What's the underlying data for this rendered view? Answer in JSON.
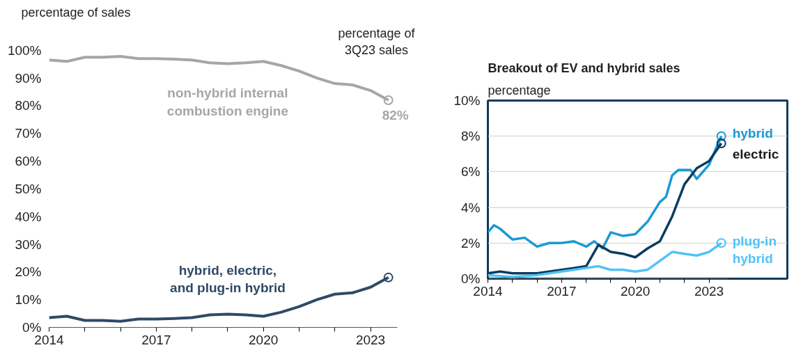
{
  "chart_data": [
    {
      "type": "line",
      "ylabel": "percentage of sales",
      "xlim": [
        2014,
        2023.75
      ],
      "ylim": [
        0,
        100
      ],
      "xticks": [
        2014,
        {
          "value": 2015,
          "label": null
        },
        {
          "value": 2016,
          "label": null
        },
        2017,
        {
          "value": 2018,
          "label": null
        },
        {
          "value": 2019,
          "label": null
        },
        2020,
        {
          "value": 2021,
          "label": null
        },
        {
          "value": 2022,
          "label": null
        },
        2023
      ],
      "yticks": [
        {
          "value": 0,
          "label": "0%"
        },
        {
          "value": 10,
          "label": "10%"
        },
        {
          "value": 20,
          "label": "20%"
        },
        {
          "value": 30,
          "label": "30%"
        },
        {
          "value": 40,
          "label": "40%"
        },
        {
          "value": 50,
          "label": "50%"
        },
        {
          "value": 60,
          "label": "60%"
        },
        {
          "value": 70,
          "label": "70%"
        },
        {
          "value": 80,
          "label": "80%"
        },
        {
          "value": 90,
          "label": "90%"
        },
        {
          "value": 100,
          "label": "100%"
        }
      ],
      "grid": false,
      "x": [
        2014,
        2014.5,
        2015,
        2015.5,
        2016,
        2016.5,
        2017,
        2017.5,
        2018,
        2018.5,
        2019,
        2019.5,
        2020,
        2020.5,
        2021,
        2021.5,
        2022,
        2022.5,
        2023,
        2023.5
      ],
      "series": [
        {
          "name": "non-hybrid internal\ncombustion engine",
          "color": "#a6a6a6",
          "values": [
            96.5,
            96,
            97.5,
            97.5,
            97.8,
            97,
            97,
            96.8,
            96.5,
            95.5,
            95.2,
            95.5,
            96,
            94.5,
            92.5,
            90,
            88,
            87.5,
            85.5,
            82
          ]
        },
        {
          "name": "hybrid, electric,\nand plug-in hybrid",
          "color": "#2e4a66",
          "values": [
            3.5,
            4,
            2.5,
            2.5,
            2.2,
            3,
            3,
            3.2,
            3.5,
            4.5,
            4.8,
            4.5,
            4,
            5.5,
            7.5,
            10,
            12,
            12.5,
            14.5,
            18
          ]
        }
      ],
      "annotations": [
        "percentage of\n3Q23 sales",
        {
          "text": "82%",
          "x": 2023.5,
          "y": 82
        }
      ]
    },
    {
      "type": "line",
      "title": "Breakout of EV and hybrid sales",
      "ylabel": "percentage",
      "xlim": [
        2014,
        2023.75
      ],
      "ylim": [
        0,
        10
      ],
      "xticks": [
        2014,
        {
          "value": 2015,
          "label": null
        },
        {
          "value": 2016,
          "label": null
        },
        2017,
        {
          "value": 2018,
          "label": null
        },
        {
          "value": 2019,
          "label": null
        },
        2020,
        {
          "value": 2021,
          "label": null
        },
        {
          "value": 2022,
          "label": null
        },
        2023
      ],
      "yticks": [
        {
          "value": 0,
          "label": "0%"
        },
        {
          "value": 2,
          "label": "2%"
        },
        {
          "value": 4,
          "label": "4%"
        },
        {
          "value": 6,
          "label": "6%"
        },
        {
          "value": 8,
          "label": "8%"
        },
        {
          "value": 10,
          "label": "10%"
        }
      ],
      "grid": "y",
      "series": [
        {
          "name": "hybrid",
          "color": "#1a9ad6",
          "x": [
            2014,
            2014.25,
            2014.5,
            2015,
            2015.5,
            2016,
            2016.5,
            2017,
            2017.5,
            2018,
            2018.33,
            2018.67,
            2019,
            2019.5,
            2020,
            2020.5,
            2021,
            2021.25,
            2021.5,
            2021.75,
            2022,
            2022.25,
            2022.5,
            2023,
            2023.5
          ],
          "values": [
            2.6,
            3.0,
            2.8,
            2.2,
            2.3,
            1.8,
            2.0,
            2.0,
            2.1,
            1.8,
            2.1,
            1.7,
            2.6,
            2.4,
            2.5,
            3.2,
            4.3,
            4.6,
            5.8,
            6.1,
            6.1,
            6.1,
            5.6,
            6.4,
            8.0
          ]
        },
        {
          "name": "electric",
          "color": "#0b3c5d",
          "x": [
            2014,
            2014.5,
            2015,
            2015.5,
            2016,
            2016.5,
            2017,
            2017.5,
            2018,
            2018.5,
            2019,
            2019.5,
            2020,
            2020.5,
            2021,
            2021.5,
            2022,
            2022.5,
            2023,
            2023.5
          ],
          "values": [
            0.3,
            0.4,
            0.3,
            0.3,
            0.3,
            0.4,
            0.5,
            0.6,
            0.7,
            1.9,
            1.5,
            1.4,
            1.2,
            1.7,
            2.1,
            3.5,
            5.3,
            6.2,
            6.6,
            7.6
          ]
        },
        {
          "name": "plug-in\nhybrid",
          "color": "#4fc3f7",
          "x": [
            2014,
            2015,
            2016,
            2017,
            2017.5,
            2018,
            2018.5,
            2019,
            2019.5,
            2020,
            2020.5,
            2021,
            2021.5,
            2022,
            2022.5,
            2023,
            2023.5
          ],
          "values": [
            0.2,
            0.1,
            0.2,
            0.4,
            0.5,
            0.6,
            0.7,
            0.5,
            0.5,
            0.4,
            0.5,
            1.0,
            1.5,
            1.4,
            1.3,
            1.5,
            2.0
          ]
        }
      ]
    }
  ]
}
